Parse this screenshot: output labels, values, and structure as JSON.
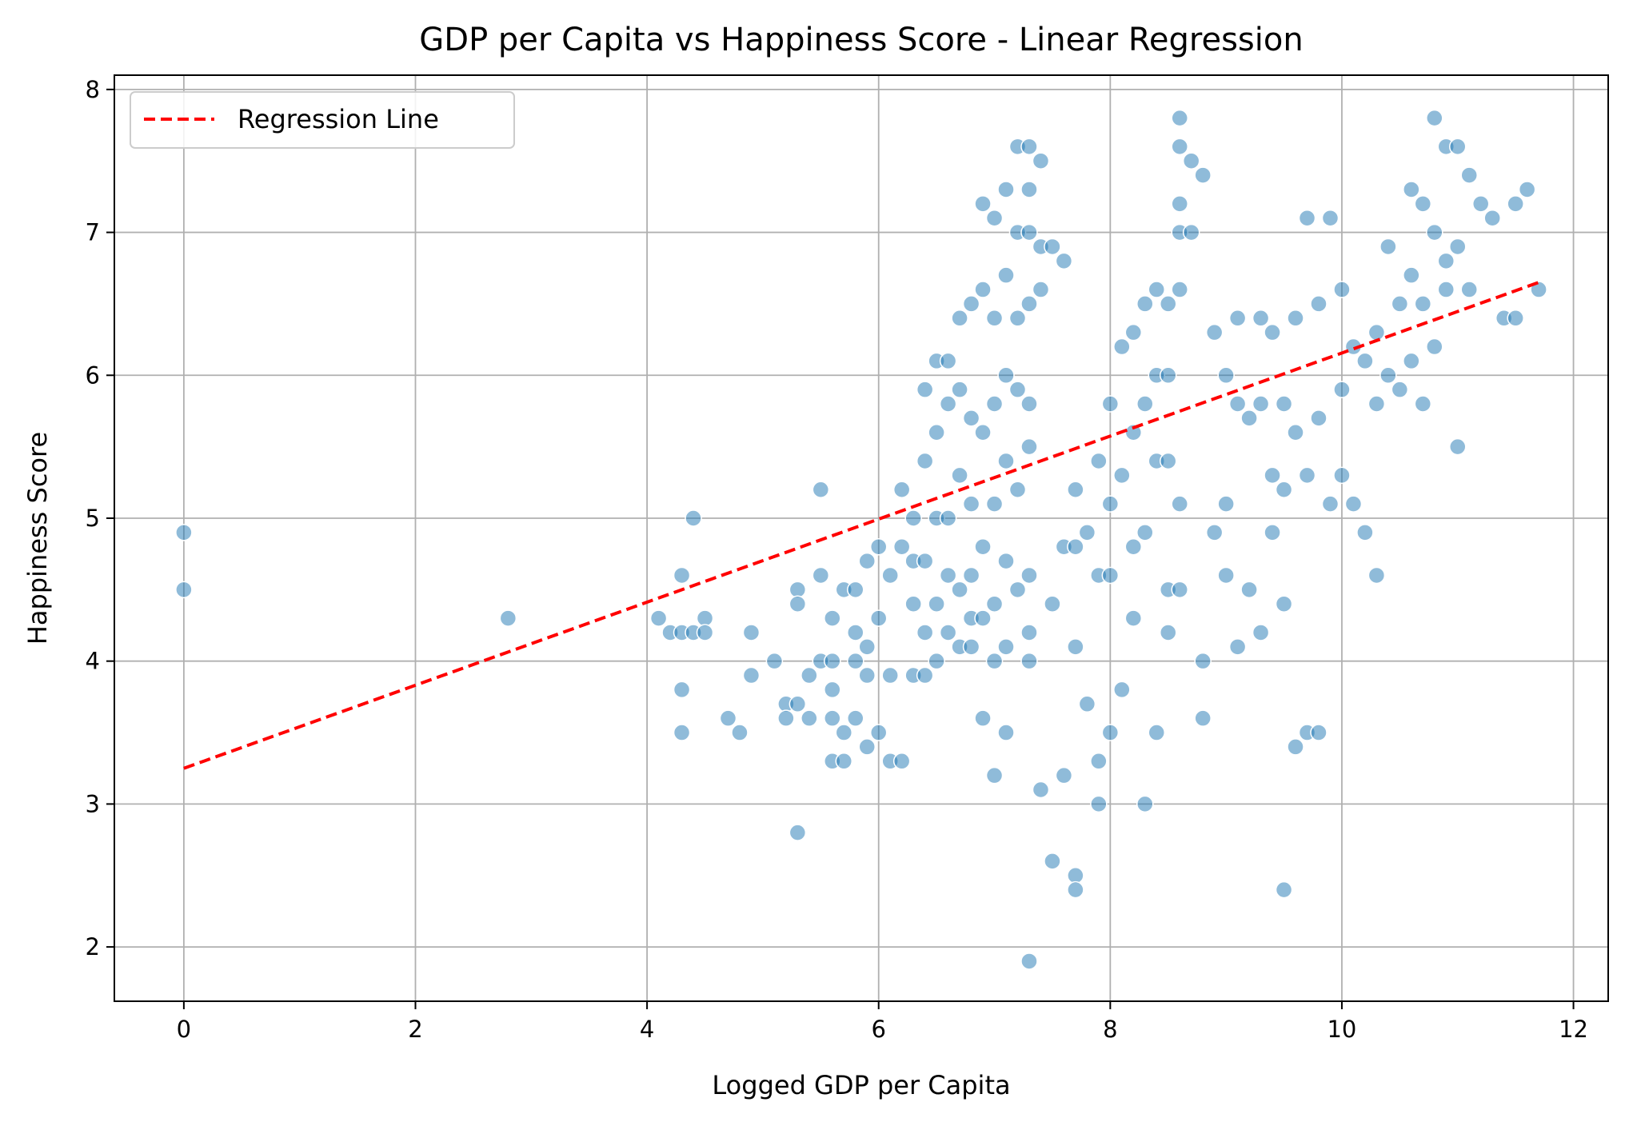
{
  "chart_data": {
    "type": "scatter",
    "title": "GDP per Capita vs Happiness Score - Linear Regression",
    "xlabel": "Logged GDP per Capita",
    "ylabel": "Happiness Score",
    "xlim": [
      -0.6,
      12.3
    ],
    "ylim": [
      1.62,
      8.1
    ],
    "xticks": [
      0,
      2,
      4,
      6,
      8,
      10,
      12
    ],
    "yticks": [
      2,
      3,
      4,
      5,
      6,
      7,
      8
    ],
    "grid": true,
    "legend": {
      "placement": "top-left",
      "entries": [
        "Regression Line"
      ]
    },
    "colors": {
      "points": "#1f77b4",
      "regression": "#ff0000"
    },
    "regression_line": {
      "x": [
        0,
        11.7
      ],
      "y": [
        3.25,
        6.65
      ],
      "style": "dashed"
    },
    "series": [
      {
        "x": [
          0,
          0,
          2.8,
          4.1,
          4.2,
          4.3,
          4.3,
          4.3,
          4.3,
          4.4,
          4.4,
          4.5,
          4.5,
          4.7,
          4.8,
          4.9,
          4.9,
          5.1,
          5.2,
          5.2,
          5.3,
          5.3,
          5.3,
          5.3,
          5.4,
          5.4,
          5.5,
          5.5,
          5.5,
          5.6,
          5.6,
          5.6,
          5.6,
          5.6,
          5.7,
          5.7,
          5.7,
          5.8,
          5.8,
          5.8,
          5.8,
          5.9,
          5.9,
          5.9,
          5.9,
          6.0,
          6.0,
          6.0,
          6.1,
          6.1,
          6.1,
          6.2,
          6.2,
          6.2,
          6.3,
          6.3,
          6.3,
          6.3,
          6.4,
          6.4,
          6.4,
          6.4,
          6.4,
          6.5,
          6.5,
          6.5,
          6.5,
          6.5,
          6.6,
          6.6,
          6.6,
          6.6,
          6.6,
          6.7,
          6.7,
          6.7,
          6.7,
          6.7,
          6.8,
          6.8,
          6.8,
          6.8,
          6.8,
          6.8,
          6.9,
          6.9,
          6.9,
          6.9,
          6.9,
          6.9,
          7.0,
          7.0,
          7.0,
          7.0,
          7.0,
          7.0,
          7.0,
          7.1,
          7.1,
          7.1,
          7.1,
          7.1,
          7.1,
          7.1,
          7.2,
          7.2,
          7.2,
          7.2,
          7.2,
          7.2,
          7.3,
          7.3,
          7.3,
          7.3,
          7.3,
          7.3,
          7.3,
          7.3,
          7.3,
          7.3,
          7.4,
          7.4,
          7.4,
          7.4,
          7.5,
          7.5,
          7.5,
          7.6,
          7.6,
          7.6,
          7.7,
          7.7,
          7.7,
          7.7,
          7.7,
          7.8,
          7.8,
          7.9,
          7.9,
          7.9,
          7.9,
          8.0,
          8.0,
          8.0,
          8.0,
          8.1,
          8.1,
          8.1,
          8.2,
          8.2,
          8.2,
          8.2,
          8.3,
          8.3,
          8.3,
          8.3,
          8.4,
          8.4,
          8.4,
          8.4,
          8.5,
          8.5,
          8.5,
          8.5,
          8.5,
          8.6,
          8.6,
          8.6,
          8.6,
          8.6,
          8.6,
          8.6,
          8.7,
          8.7,
          8.8,
          8.8,
          8.8,
          8.9,
          8.9,
          9.0,
          9.0,
          9.0,
          9.1,
          9.1,
          9.1,
          9.2,
          9.2,
          9.3,
          9.3,
          9.3,
          9.4,
          9.4,
          9.4,
          9.5,
          9.5,
          9.5,
          9.5,
          9.6,
          9.6,
          9.6,
          9.7,
          9.7,
          9.7,
          9.8,
          9.8,
          9.8,
          9.9,
          9.9,
          10.0,
          10.0,
          10.0,
          10.1,
          10.1,
          10.2,
          10.2,
          10.3,
          10.3,
          10.3,
          10.4,
          10.4,
          10.5,
          10.5,
          10.6,
          10.6,
          10.6,
          10.7,
          10.7,
          10.7,
          10.8,
          10.8,
          10.8,
          10.9,
          10.9,
          10.9,
          11.0,
          11.0,
          11.0,
          11.1,
          11.1,
          11.2,
          11.3,
          11.4,
          11.5,
          11.5,
          11.6,
          11.7
        ],
        "y": [
          4.9,
          4.5,
          4.3,
          4.3,
          4.2,
          4.6,
          3.8,
          3.5,
          4.2,
          5.0,
          4.2,
          4.3,
          4.2,
          3.6,
          3.5,
          4.2,
          3.9,
          4.0,
          3.7,
          3.6,
          4.5,
          4.4,
          3.7,
          2.8,
          3.9,
          3.6,
          5.2,
          4.6,
          4.0,
          4.0,
          3.8,
          3.6,
          3.3,
          4.3,
          4.5,
          3.5,
          3.3,
          4.5,
          4.2,
          4.0,
          3.6,
          4.7,
          4.1,
          3.9,
          3.4,
          4.8,
          4.3,
          3.5,
          4.6,
          3.9,
          3.3,
          5.2,
          4.8,
          3.3,
          5.0,
          4.7,
          4.4,
          3.9,
          5.9,
          5.4,
          4.7,
          4.2,
          3.9,
          6.1,
          5.6,
          5.0,
          4.4,
          4.0,
          6.1,
          5.8,
          5.0,
          4.6,
          4.2,
          6.4,
          5.9,
          5.3,
          4.5,
          4.1,
          6.5,
          5.7,
          5.1,
          4.6,
          4.3,
          4.1,
          7.2,
          6.6,
          5.6,
          4.8,
          4.3,
          3.6,
          7.1,
          6.4,
          5.8,
          5.1,
          4.4,
          4.0,
          3.2,
          7.3,
          6.7,
          6.0,
          5.4,
          4.7,
          4.1,
          3.5,
          7.6,
          7.0,
          6.4,
          5.9,
          5.2,
          4.5,
          7.6,
          7.3,
          7.0,
          6.5,
          5.8,
          5.5,
          4.6,
          4.2,
          4.0,
          1.9,
          7.5,
          6.9,
          6.6,
          3.1,
          6.9,
          4.4,
          2.6,
          6.8,
          4.8,
          3.2,
          5.2,
          4.8,
          4.1,
          2.5,
          2.4,
          4.9,
          3.7,
          5.4,
          4.6,
          3.3,
          3.0,
          5.8,
          5.1,
          4.6,
          3.5,
          6.2,
          5.3,
          3.8,
          6.3,
          5.6,
          4.8,
          4.3,
          6.5,
          5.8,
          4.9,
          3.0,
          6.6,
          6.0,
          5.4,
          3.5,
          6.5,
          6.0,
          5.4,
          4.5,
          4.2,
          7.8,
          7.6,
          7.2,
          7.0,
          6.6,
          5.1,
          4.5,
          7.5,
          7.0,
          7.4,
          4.0,
          3.6,
          6.3,
          4.9,
          6.0,
          5.1,
          4.6,
          6.4,
          5.8,
          4.1,
          5.7,
          4.5,
          6.4,
          5.8,
          4.2,
          6.3,
          5.3,
          4.9,
          5.8,
          5.2,
          4.4,
          2.4,
          6.4,
          5.6,
          3.4,
          7.1,
          5.3,
          3.5,
          6.5,
          5.7,
          3.5,
          7.1,
          5.1,
          6.6,
          5.9,
          5.3,
          6.2,
          5.1,
          6.1,
          4.9,
          6.3,
          5.8,
          4.6,
          6.9,
          6.0,
          6.5,
          5.9,
          7.3,
          6.7,
          6.1,
          7.2,
          6.5,
          5.8,
          7.8,
          7.0,
          6.2,
          7.6,
          6.8,
          6.6,
          7.6,
          6.9,
          5.5,
          7.4,
          6.6,
          7.2,
          7.1,
          6.4,
          7.2,
          6.4,
          7.3,
          6.6
        ]
      }
    ]
  }
}
